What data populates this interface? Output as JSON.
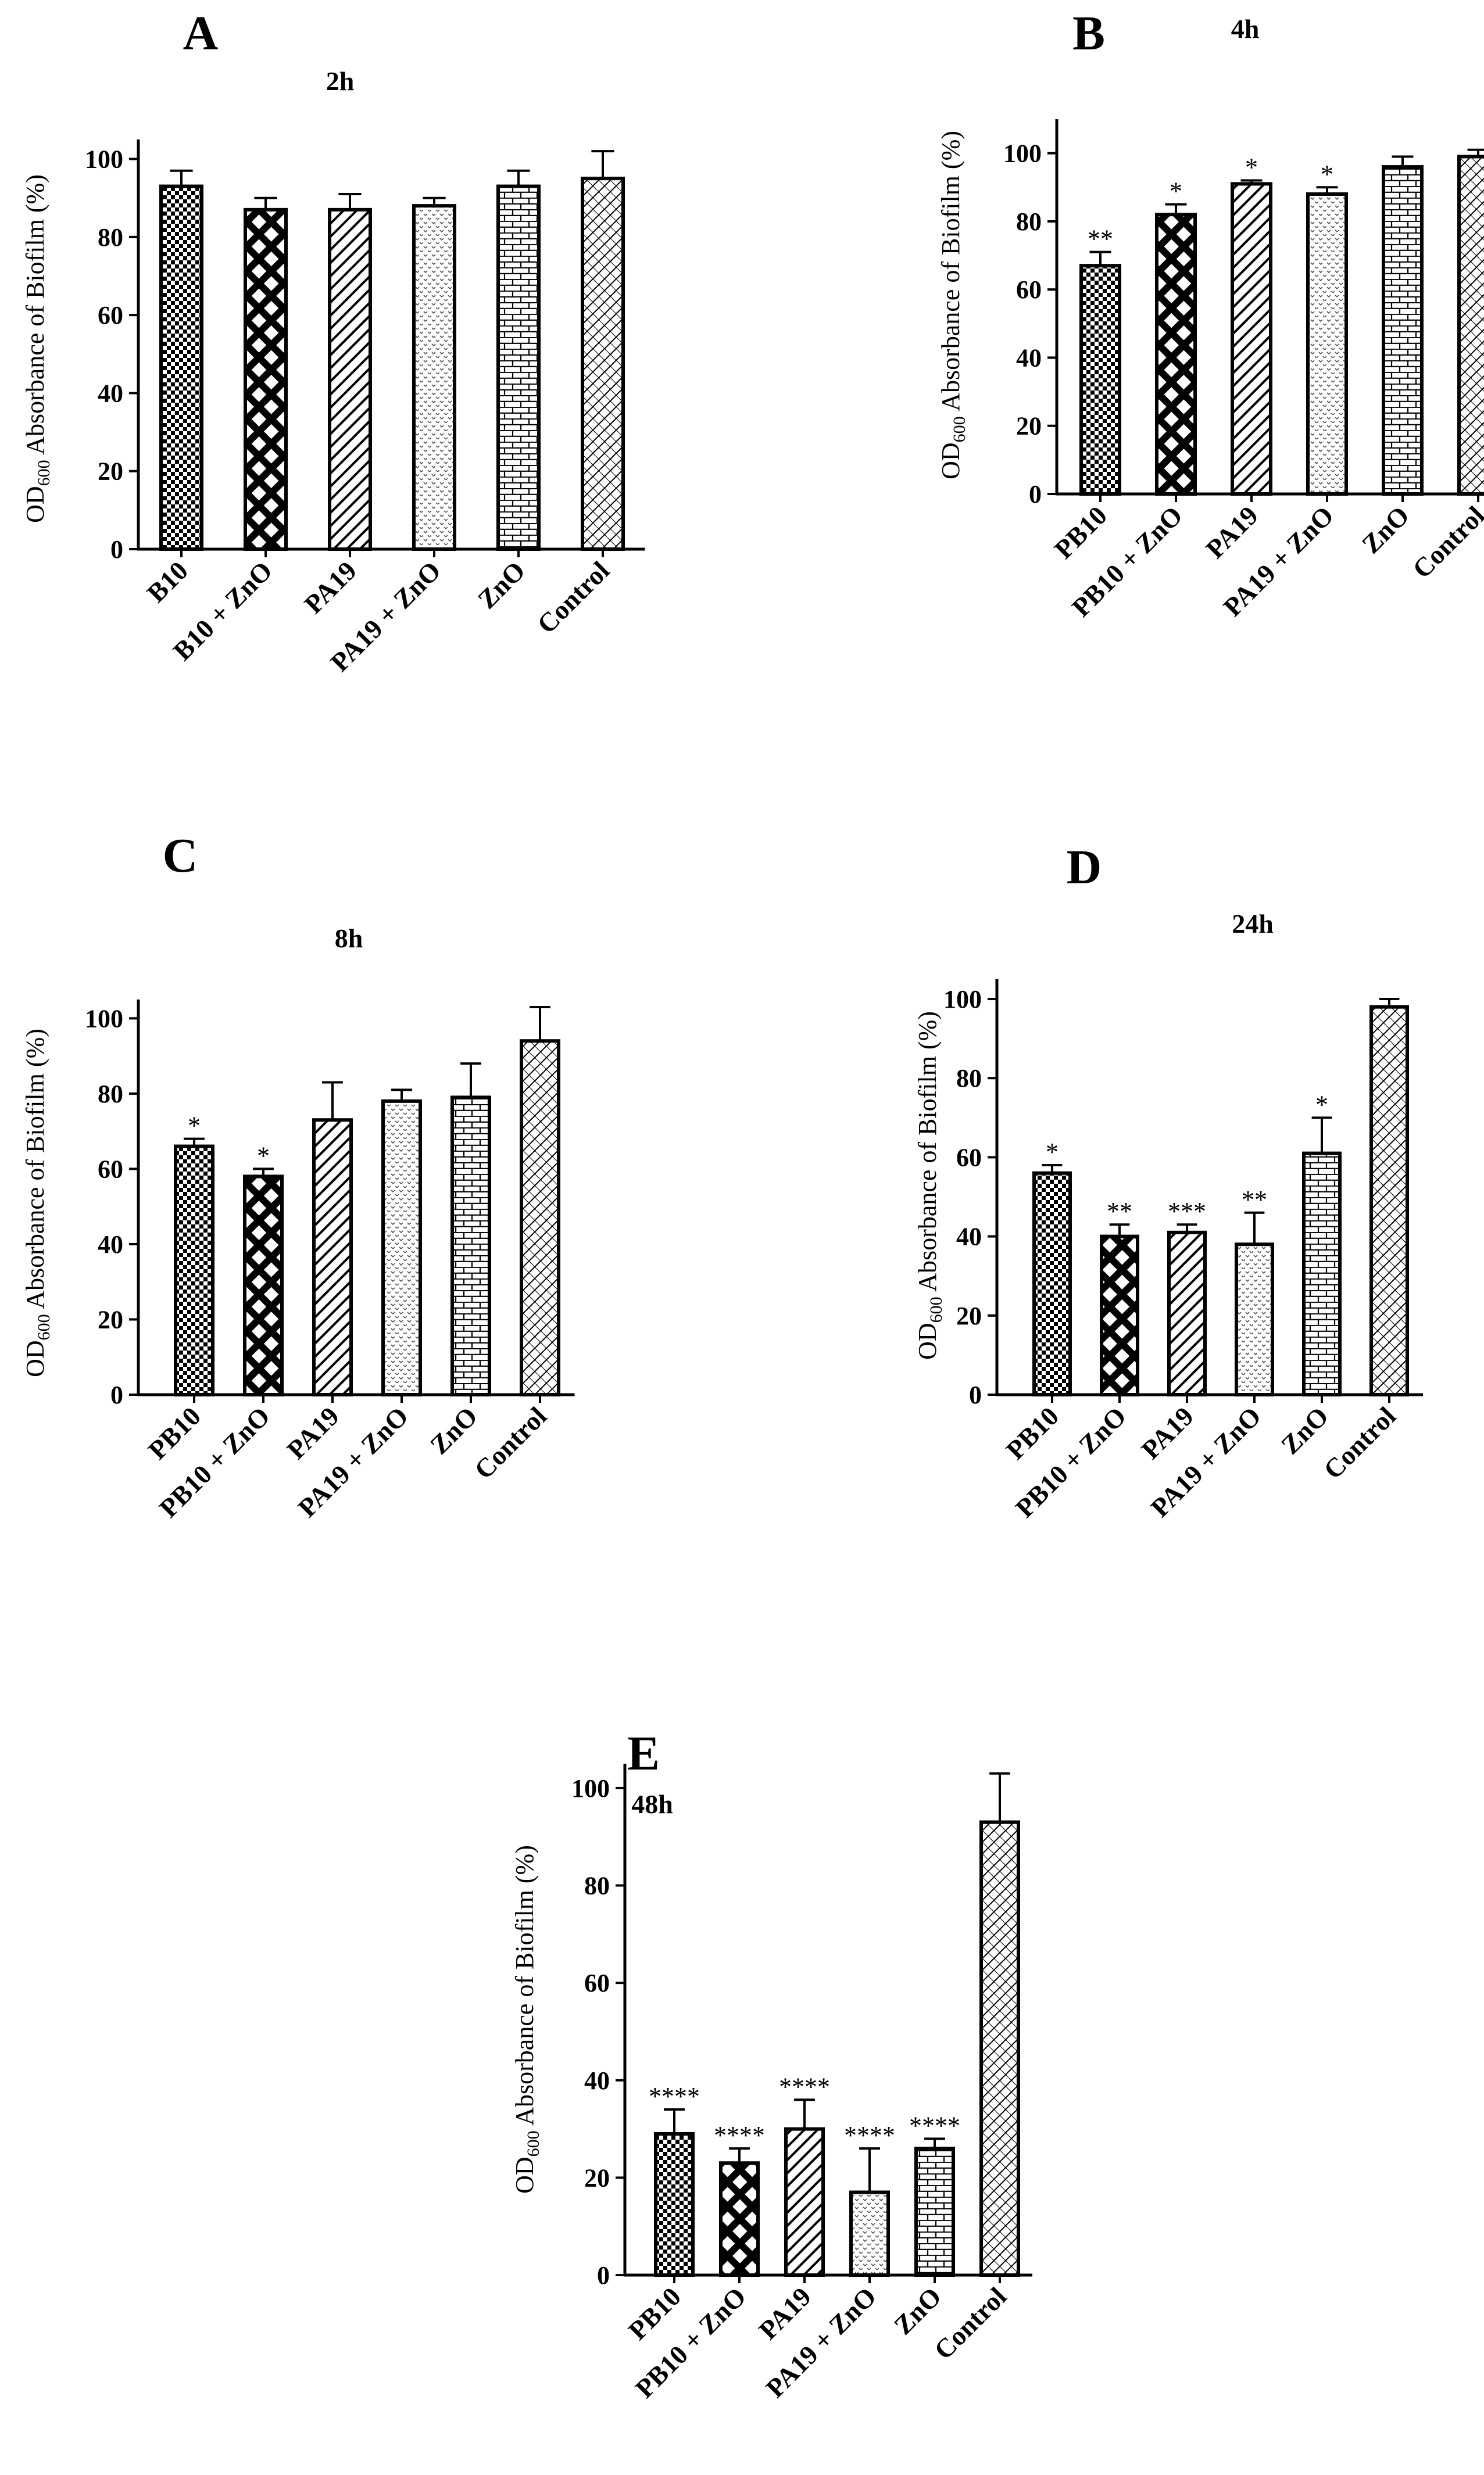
{
  "ylabel": {
    "prefix": "OD",
    "subscript": "600",
    "suffix": " Absorbance of Biofilm (%)"
  },
  "colors": {
    "ink": "#000000",
    "background": "#ffffff"
  },
  "chart_data": [
    {
      "type": "bar",
      "panel": "A",
      "title": "2h",
      "ylabel": "OD600 Absorbance of Biofilm (%)",
      "ylim": [
        0,
        105
      ],
      "yticks": [
        0,
        20,
        40,
        60,
        80,
        100
      ],
      "categories": [
        "B10",
        "B10 + ZnO",
        "PA19",
        "PA19 + ZnO",
        "ZnO",
        "Control"
      ],
      "values": [
        93,
        87,
        87,
        88,
        93,
        95
      ],
      "errors": [
        4,
        3,
        4,
        2,
        4,
        7
      ],
      "significance": [
        "",
        "",
        "",
        "",
        "",
        ""
      ],
      "patterns": [
        "checker",
        "diamond",
        "diag",
        "dots",
        "brick",
        "wave"
      ]
    },
    {
      "type": "bar",
      "panel": "B",
      "title": "4h",
      "ylabel": "OD600 Absorbance of Biofilm (%)",
      "ylim": [
        0,
        110
      ],
      "yticks": [
        0,
        20,
        40,
        60,
        80,
        100
      ],
      "categories": [
        "PB10",
        "PB10 + ZnO",
        "PA19",
        "PA19 + ZnO",
        "ZnO",
        "Control"
      ],
      "values": [
        67,
        82,
        91,
        88,
        96,
        99
      ],
      "errors": [
        4,
        3,
        1,
        2,
        3,
        2
      ],
      "significance": [
        "**",
        "*",
        "*",
        "*",
        "",
        ""
      ],
      "patterns": [
        "checker",
        "diamond",
        "diag",
        "dots",
        "brick",
        "wave"
      ]
    },
    {
      "type": "bar",
      "panel": "C",
      "title": "8h",
      "ylabel": "OD600 Absorbance of Biofilm (%)",
      "ylim": [
        0,
        105
      ],
      "yticks": [
        0,
        20,
        40,
        60,
        80,
        100
      ],
      "categories": [
        "PB10",
        "PB10 + ZnO",
        "PA19",
        "PA19 + ZnO",
        "ZnO",
        "Control"
      ],
      "values": [
        66,
        58,
        73,
        78,
        79,
        94
      ],
      "errors": [
        2,
        2,
        10,
        3,
        9,
        9
      ],
      "significance": [
        "*",
        "*",
        "",
        "",
        "",
        ""
      ],
      "patterns": [
        "checker",
        "diamond",
        "diag",
        "dots",
        "brick",
        "wave"
      ]
    },
    {
      "type": "bar",
      "panel": "D",
      "title": "24h",
      "ylabel": "OD600 Absorbance of Biofilm (%)",
      "ylim": [
        0,
        105
      ],
      "yticks": [
        0,
        20,
        40,
        60,
        80,
        100
      ],
      "categories": [
        "PB10",
        "PB10 + ZnO",
        "PA19",
        "PA19 + ZnO",
        "ZnO",
        "Control"
      ],
      "values": [
        56,
        40,
        41,
        38,
        61,
        98
      ],
      "errors": [
        2,
        3,
        2,
        8,
        9,
        2
      ],
      "significance": [
        "*",
        "**",
        "***",
        "**",
        "*",
        ""
      ],
      "patterns": [
        "checker",
        "diamond",
        "diag",
        "dots",
        "brick",
        "wave"
      ]
    },
    {
      "type": "bar",
      "panel": "E",
      "title": "48h",
      "ylabel": "OD600 Absorbance of Biofilm (%)",
      "ylim": [
        0,
        105
      ],
      "yticks": [
        0,
        20,
        40,
        60,
        80,
        100
      ],
      "categories": [
        "PB10",
        "PB10 + ZnO",
        "PA19",
        "PA19 + ZnO",
        "ZnO",
        "Control"
      ],
      "values": [
        29,
        23,
        30,
        17,
        26,
        93
      ],
      "errors": [
        5,
        3,
        6,
        9,
        2,
        10
      ],
      "significance": [
        "****",
        "****",
        "****",
        "****",
        "****",
        ""
      ],
      "patterns": [
        "checker",
        "diamond",
        "diag",
        "dots",
        "brick",
        "wave"
      ]
    }
  ]
}
